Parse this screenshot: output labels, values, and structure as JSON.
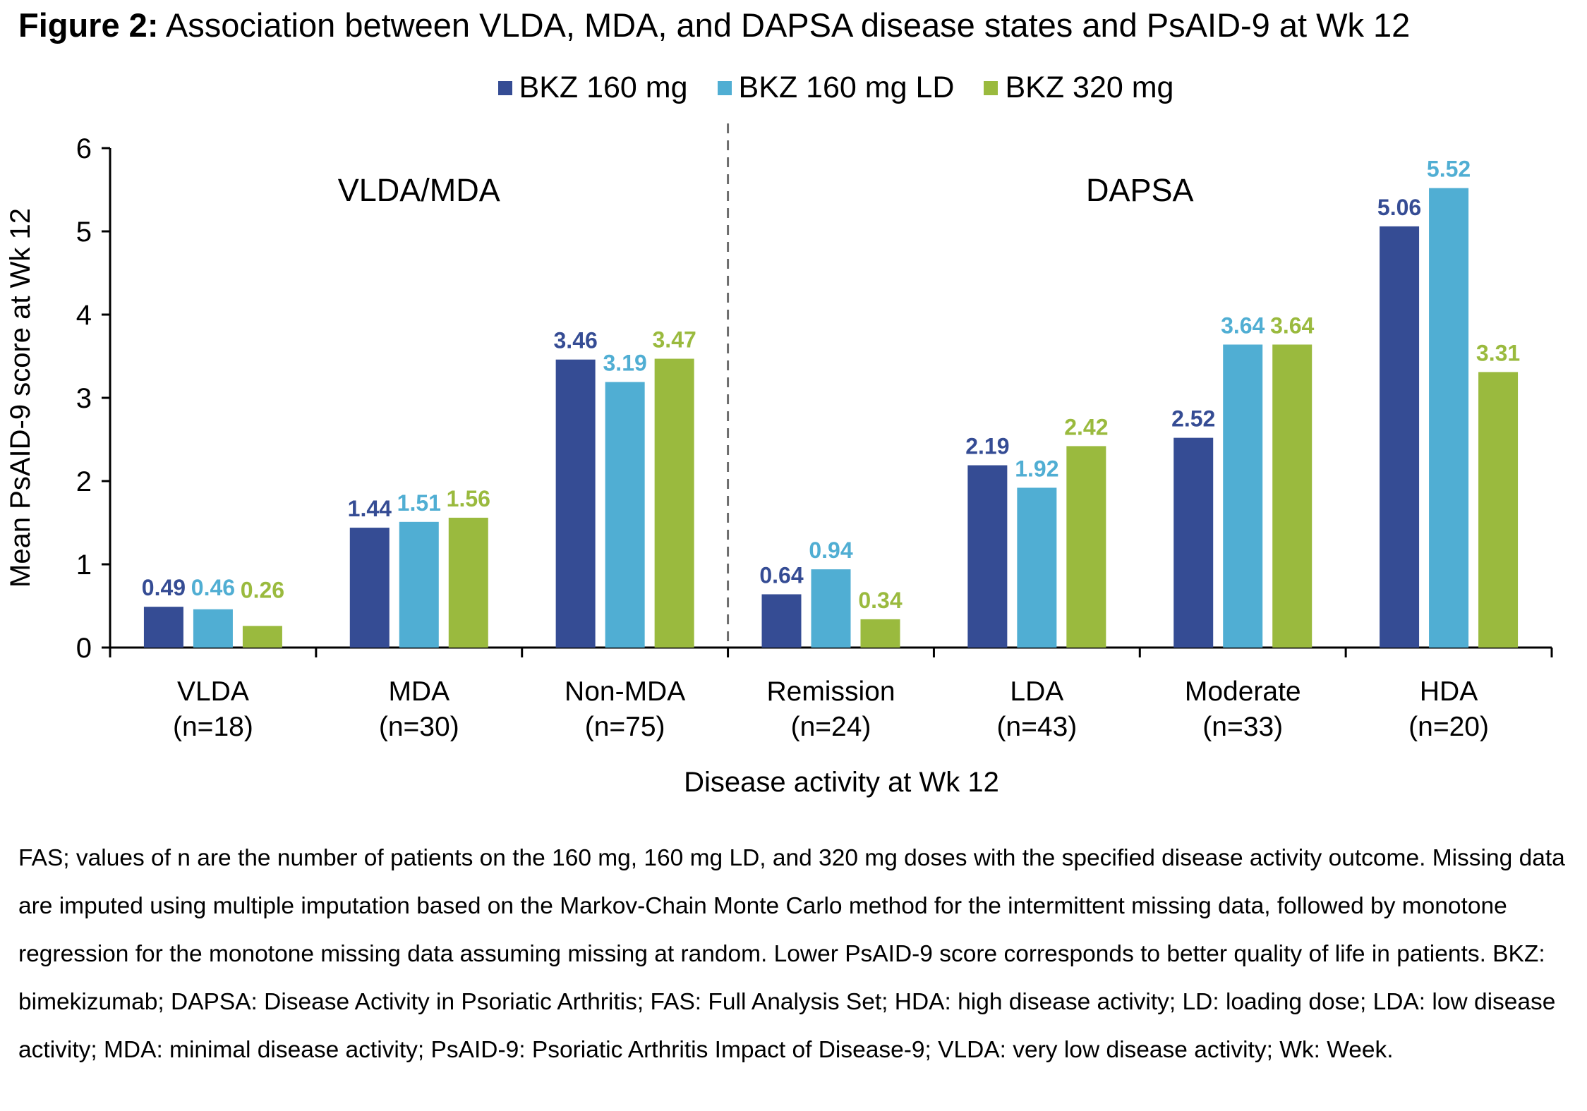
{
  "figure": {
    "title_bold": "Figure 2:",
    "title_rest": " Association between VLDA, MDA, and DAPSA disease states and PsAID-9 at Wk 12"
  },
  "footnote": "FAS; values of n are the number of patients on the 160 mg, 160 mg LD, and 320 mg doses with the specified disease activity outcome. Missing data are imputed using multiple imputation based on the Markov-Chain Monte Carlo method for the intermittent missing data, followed by monotone regression for the monotone missing data assuming missing at random. Lower PsAID-9 score corresponds to better quality of life in patients. BKZ: bimekizumab; DAPSA: Disease Activity in Psoriatic Arthritis; FAS: Full Analysis Set; HDA: high disease activity; LD: loading dose; LDA: low disease activity; MDA: minimal disease activity; PsAID-9: Psoriatic Arthritis Impact of Disease-9; VLDA: very low disease activity; Wk: Week.",
  "chart_data": {
    "type": "bar",
    "title": "Association between VLDA, MDA, and DAPSA disease states and PsAID-9 at Wk 12",
    "xlabel": "Disease activity at Wk 12",
    "ylabel": "Mean PsAID-9 score at Wk 12",
    "ylim": [
      0,
      6
    ],
    "yticks": [
      0,
      1,
      2,
      3,
      4,
      5,
      6
    ],
    "grid": false,
    "legend_position": "top-center",
    "categories": [
      "VLDA",
      "MDA",
      "Non-MDA",
      "Remission",
      "LDA",
      "Moderate",
      "HDA"
    ],
    "category_n": [
      "(n=18)",
      "(n=30)",
      "(n=75)",
      "(n=24)",
      "(n=43)",
      "(n=33)",
      "(n=20)"
    ],
    "groups": [
      {
        "label": "VLDA/MDA",
        "categories": [
          "VLDA",
          "MDA",
          "Non-MDA"
        ]
      },
      {
        "label": "DAPSA",
        "categories": [
          "Remission",
          "LDA",
          "Moderate",
          "HDA"
        ]
      }
    ],
    "series": [
      {
        "name": "BKZ 160 mg",
        "color": "#354c94",
        "values": [
          0.49,
          1.44,
          3.46,
          0.64,
          2.19,
          2.52,
          5.06
        ]
      },
      {
        "name": "BKZ 160 mg LD",
        "color": "#50aed3",
        "values": [
          0.46,
          1.51,
          3.19,
          0.94,
          1.92,
          3.64,
          5.52
        ]
      },
      {
        "name": "BKZ 320 mg",
        "color": "#9aba3e",
        "values": [
          0.26,
          1.56,
          3.47,
          0.34,
          2.42,
          3.64,
          3.31
        ]
      }
    ]
  }
}
